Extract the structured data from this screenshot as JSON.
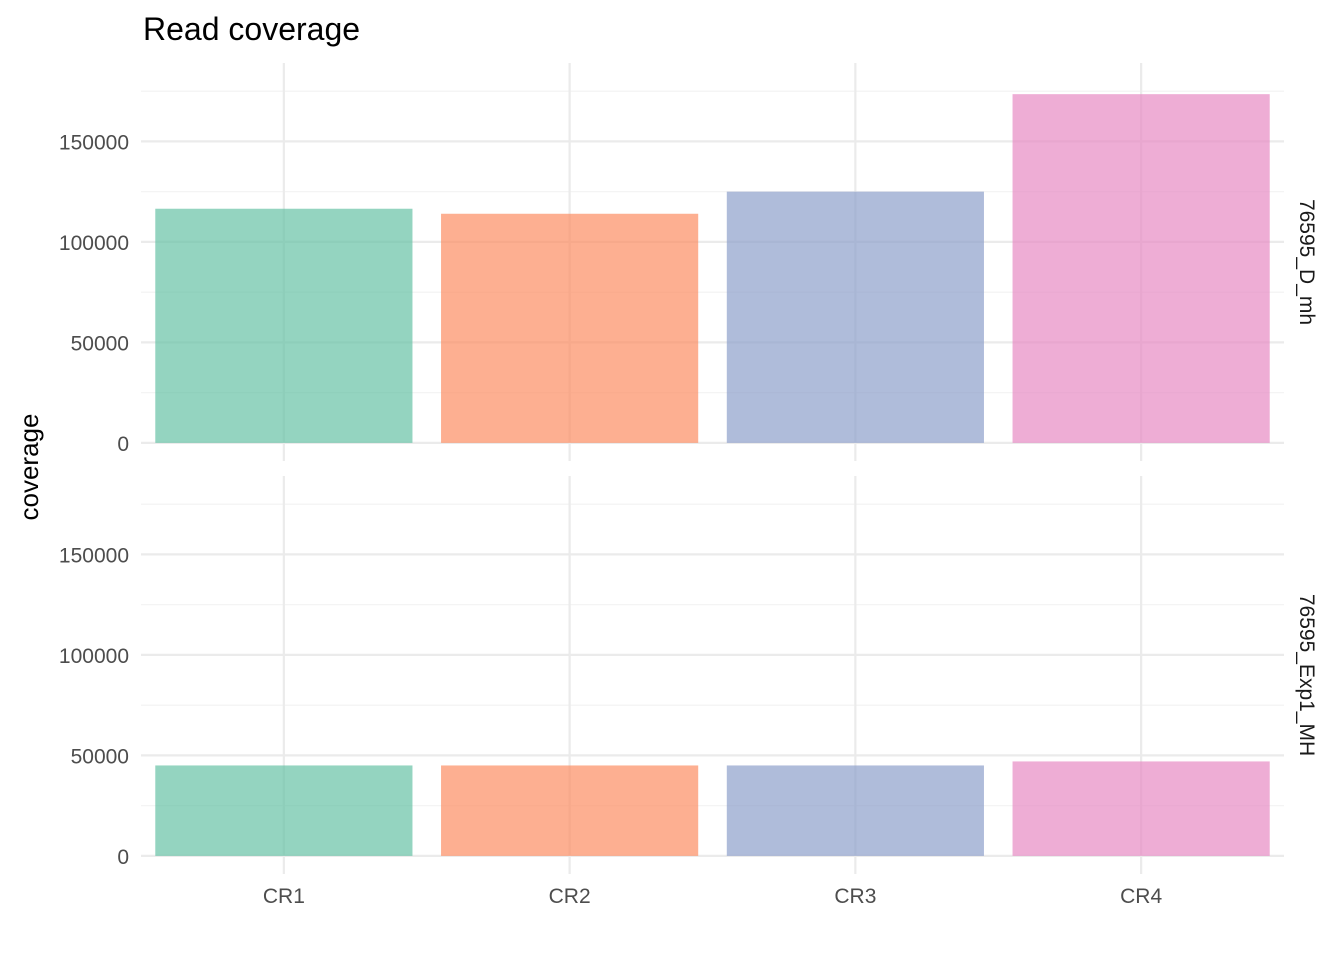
{
  "chart_data": {
    "type": "bar",
    "title": "Read coverage",
    "xlabel": "",
    "ylabel": "coverage",
    "categories": [
      "CR1",
      "CR2",
      "CR3",
      "CR4"
    ],
    "facets": [
      {
        "label": "76595_D_mh",
        "values": [
          116500,
          114000,
          125000,
          173500
        ]
      },
      {
        "label": "76595_Exp1_MH",
        "values": [
          45000,
          45000,
          45000,
          47000
        ]
      }
    ],
    "ylim": [
      0,
      180000
    ],
    "yticks": [
      0,
      50000,
      100000,
      150000
    ],
    "colors": [
      "#66c2a5",
      "#fc8d62",
      "#8da0cb",
      "#e78ac3"
    ],
    "bar_opacity": 0.7,
    "grid": true,
    "legend": "none"
  }
}
